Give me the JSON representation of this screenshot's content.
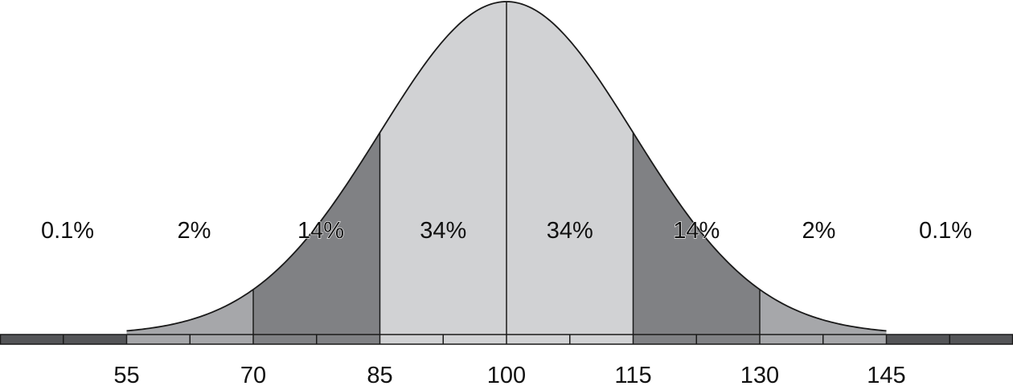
{
  "chart_data": {
    "type": "area",
    "title": "",
    "xlabel": "",
    "ylabel": "",
    "distribution": {
      "mean": 100,
      "sd": 15
    },
    "xlim": [
      40,
      160
    ],
    "tick_labels": [
      "55",
      "70",
      "85",
      "100",
      "115",
      "130",
      "145"
    ],
    "tick_values": [
      55,
      70,
      85,
      100,
      115,
      130,
      145
    ],
    "minor_ticks": [
      47.5,
      62.5,
      77.5,
      92.5,
      107.5,
      122.5,
      137.5,
      152.5
    ],
    "dividers": [
      70,
      85,
      100,
      115,
      130
    ],
    "bands": [
      {
        "from": 40,
        "to": 55,
        "label": "0.1%",
        "label_x": 48,
        "fill": "#545558",
        "curve": false
      },
      {
        "from": 55,
        "to": 70,
        "label": "2%",
        "label_x": 63,
        "fill": "#a6a7aa",
        "curve": true
      },
      {
        "from": 70,
        "to": 85,
        "label": "14%",
        "label_x": 78,
        "fill": "#808184",
        "curve": true
      },
      {
        "from": 85,
        "to": 100,
        "label": "34%",
        "label_x": 92.5,
        "fill": "#d1d2d4",
        "curve": true
      },
      {
        "from": 100,
        "to": 115,
        "label": "34%",
        "label_x": 107.5,
        "fill": "#d1d2d4",
        "curve": true
      },
      {
        "from": 115,
        "to": 130,
        "label": "14%",
        "label_x": 122.5,
        "fill": "#808184",
        "curve": true
      },
      {
        "from": 130,
        "to": 145,
        "label": "2%",
        "label_x": 137,
        "fill": "#a6a7aa",
        "curve": true
      },
      {
        "from": 145,
        "to": 160,
        "label": "0.1%",
        "label_x": 152,
        "fill": "#545558",
        "curve": false
      }
    ]
  }
}
